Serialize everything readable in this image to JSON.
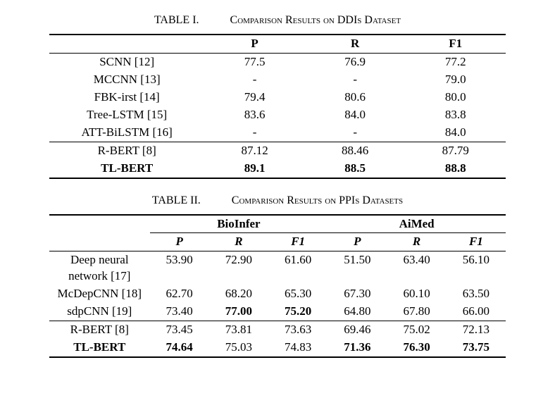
{
  "table1": {
    "caption_number": "TABLE I.",
    "caption_text": "Comparison Results on DDIs Dataset",
    "columns": [
      "P",
      "R",
      "F1"
    ],
    "block1": [
      {
        "method": "SCNN [12]",
        "p": "77.5",
        "r": "76.9",
        "f1": "77.2"
      },
      {
        "method": "MCCNN [13]",
        "p": "-",
        "r": "-",
        "f1": "79.0"
      },
      {
        "method": "FBK-irst [14]",
        "p": "79.4",
        "r": "80.6",
        "f1": "80.0"
      },
      {
        "method": "Tree-LSTM [15]",
        "p": "83.6",
        "r": "84.0",
        "f1": "83.8"
      },
      {
        "method": "ATT-BiLSTM [16]",
        "p": "-",
        "r": "-",
        "f1": "84.0"
      }
    ],
    "block2": [
      {
        "method": "R-BERT [8]",
        "p": "87.12",
        "r": "88.46",
        "f1": "87.79",
        "bold": false
      },
      {
        "method": "TL-BERT",
        "p": "89.1",
        "r": "88.5",
        "f1": "88.8",
        "bold": true
      }
    ]
  },
  "table2": {
    "caption_number": "TABLE II.",
    "caption_text": "Comparison Results on PPIs Datasets",
    "groups": [
      "BioInfer",
      "AiMed"
    ],
    "sub_columns": [
      "P",
      "R",
      "F1"
    ],
    "block1": [
      {
        "method": "Deep neural network [17]",
        "vals": [
          "53.90",
          "72.90",
          "61.60",
          "51.50",
          "63.40",
          "56.10"
        ],
        "bold": [
          false,
          false,
          false,
          false,
          false,
          false
        ],
        "method_bold": false
      },
      {
        "method": "McDepCNN [18]",
        "vals": [
          "62.70",
          "68.20",
          "65.30",
          "67.30",
          "60.10",
          "63.50"
        ],
        "bold": [
          false,
          false,
          false,
          false,
          false,
          false
        ],
        "method_bold": false
      },
      {
        "method": "sdpCNN [19]",
        "vals": [
          "73.40",
          "77.00",
          "75.20",
          "64.80",
          "67.80",
          "66.00"
        ],
        "bold": [
          false,
          true,
          true,
          false,
          false,
          false
        ],
        "method_bold": false
      }
    ],
    "block2": [
      {
        "method": "R-BERT [8]",
        "vals": [
          "73.45",
          "73.81",
          "73.63",
          "69.46",
          "75.02",
          "72.13"
        ],
        "bold": [
          false,
          false,
          false,
          false,
          false,
          false
        ],
        "method_bold": false
      },
      {
        "method": "TL-BERT",
        "vals": [
          "74.64",
          "75.03",
          "74.83",
          "71.36",
          "76.30",
          "73.75"
        ],
        "bold": [
          true,
          false,
          false,
          true,
          true,
          true
        ],
        "method_bold": true
      }
    ]
  }
}
